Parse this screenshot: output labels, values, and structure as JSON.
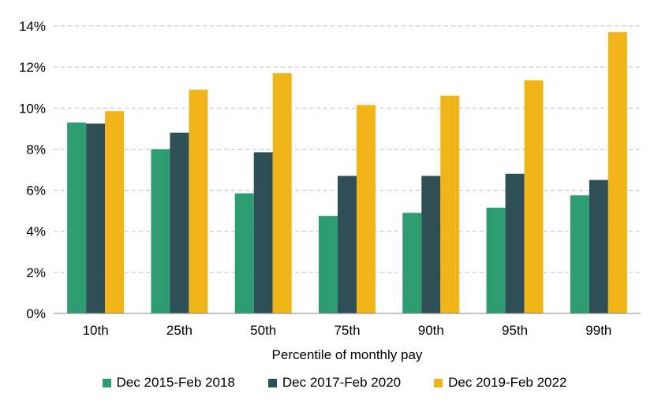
{
  "chart_data": {
    "type": "bar",
    "categories": [
      "10th",
      "25th",
      "50th",
      "75th",
      "90th",
      "95th",
      "99th"
    ],
    "series": [
      {
        "name": "Dec 2015-Feb 2018",
        "color": "#2e9e72",
        "values": [
          9.3,
          8.0,
          5.85,
          4.75,
          4.9,
          5.15,
          5.75
        ]
      },
      {
        "name": "Dec 2017-Feb 2020",
        "color": "#2f4f57",
        "values": [
          9.25,
          8.8,
          7.85,
          6.7,
          6.7,
          6.8,
          6.5
        ]
      },
      {
        "name": "Dec 2019-Feb 2022",
        "color": "#f2b519",
        "values": [
          9.85,
          10.9,
          11.7,
          10.15,
          10.6,
          11.35,
          13.7
        ]
      }
    ],
    "y_ticks": [
      "0%",
      "2%",
      "4%",
      "6%",
      "8%",
      "10%",
      "12%",
      "14%"
    ],
    "ylim": [
      0,
      14
    ],
    "xlabel": "Percentile of monthly pay",
    "ylabel": "",
    "title": "",
    "grid": true,
    "legend_position": "bottom"
  }
}
